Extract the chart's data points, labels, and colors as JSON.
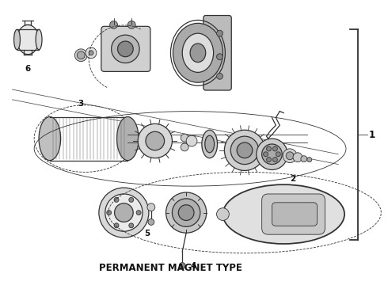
{
  "bg_color": "#ffffff",
  "line_color": "#333333",
  "text_color": "#111111",
  "title_text": "PERMANENT MAGNET TYPE",
  "title_fontsize": 8.5,
  "label_fontsize": 7.5,
  "fig_width": 4.9,
  "fig_height": 3.6,
  "dpi": 100,
  "bracket_label": "1"
}
